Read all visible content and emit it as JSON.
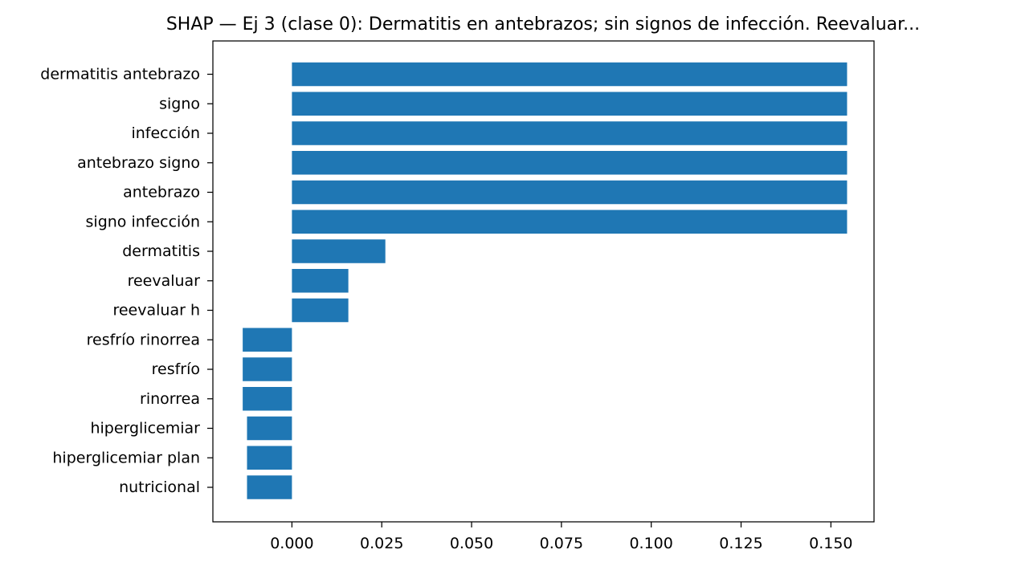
{
  "chart_data": {
    "type": "bar",
    "orientation": "horizontal",
    "title": "SHAP — Ej 3 (clase 0): Dermatitis en antebrazos; sin signos de infección. Reevaluar...",
    "xlabel": "",
    "ylabel": "",
    "categories": [
      "dermatitis antebrazo",
      "signo",
      "infección",
      "antebrazo signo",
      "antebrazo",
      "signo infección",
      "dermatitis",
      "reevaluar",
      "reevaluar h",
      "resfrío rinorrea",
      "resfrío",
      "rinorrea",
      "hiperglicemiar",
      "hiperglicemiar plan",
      "nutricional"
    ],
    "values": [
      0.1545,
      0.1545,
      0.1545,
      0.1545,
      0.1545,
      0.1545,
      0.026,
      0.0157,
      0.0157,
      -0.0137,
      -0.0137,
      -0.0137,
      -0.0125,
      -0.0125,
      -0.0125
    ],
    "xlim": [
      -0.022,
      0.162
    ],
    "xticks": [
      0.0,
      0.025,
      0.05,
      0.075,
      0.1,
      0.125,
      0.15
    ],
    "xtick_labels": [
      "0.000",
      "0.025",
      "0.050",
      "0.075",
      "0.100",
      "0.125",
      "0.150"
    ],
    "grid": false,
    "legend": "none",
    "colors": {
      "bar": "#1f77b4",
      "axes": "#000000",
      "background": "#ffffff"
    }
  }
}
